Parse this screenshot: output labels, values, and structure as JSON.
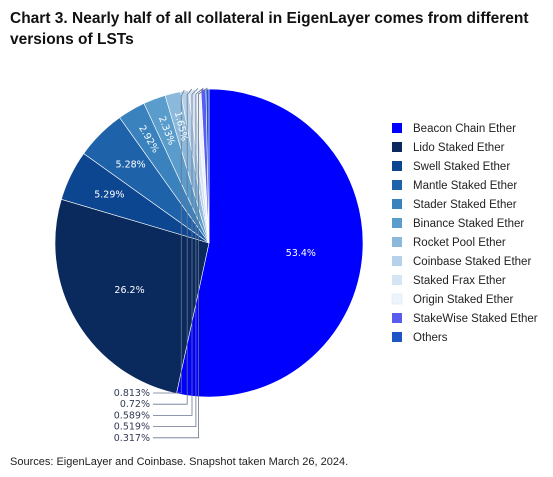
{
  "title": "Chart 3. Nearly half of all collateral in EigenLayer comes from different versions of LSTs",
  "source": "Sources: EigenLayer and Coinbase. Snapshot taken March 26, 2024.",
  "chart_data": {
    "type": "pie",
    "legend_position": "right",
    "slices": [
      {
        "name": "Beacon Chain Ether",
        "value": 53.4,
        "label": "53.4%",
        "color": "#0000ff"
      },
      {
        "name": "Lido Staked Ether",
        "value": 26.2,
        "label": "26.2%",
        "color": "#0a2a5e"
      },
      {
        "name": "Swell Staked Ether",
        "value": 5.29,
        "label": "5.29%",
        "color": "#0d4690"
      },
      {
        "name": "Mantle Staked Ether",
        "value": 5.28,
        "label": "5.28%",
        "color": "#1e63aa"
      },
      {
        "name": "Stader Staked Ether",
        "value": 2.92,
        "label": "2.92%",
        "color": "#3a82bd"
      },
      {
        "name": "Binance Staked Ether",
        "value": 2.33,
        "label": "2.33%",
        "color": "#5a9ccb"
      },
      {
        "name": "Rocket Pool Ether",
        "value": 1.65,
        "label": "1.65%",
        "color": "#8ab9dc"
      },
      {
        "name": "Coinbase Staked Ether",
        "value": 0.813,
        "label": "0.813%",
        "color": "#b6d2ea"
      },
      {
        "name": "Staked Frax Ether",
        "value": 0.72,
        "label": "0.72%",
        "color": "#d6e5f3"
      },
      {
        "name": "Origin Staked Ether",
        "value": 0.589,
        "label": "0.589%",
        "color": "#eef4fb"
      },
      {
        "name": "StakeWise Staked Ether",
        "value": 0.519,
        "label": "0.519%",
        "color": "#5a5cf0"
      },
      {
        "name": "Others",
        "value": 0.317,
        "label": "0.317%",
        "color": "#1f55c4"
      }
    ]
  }
}
